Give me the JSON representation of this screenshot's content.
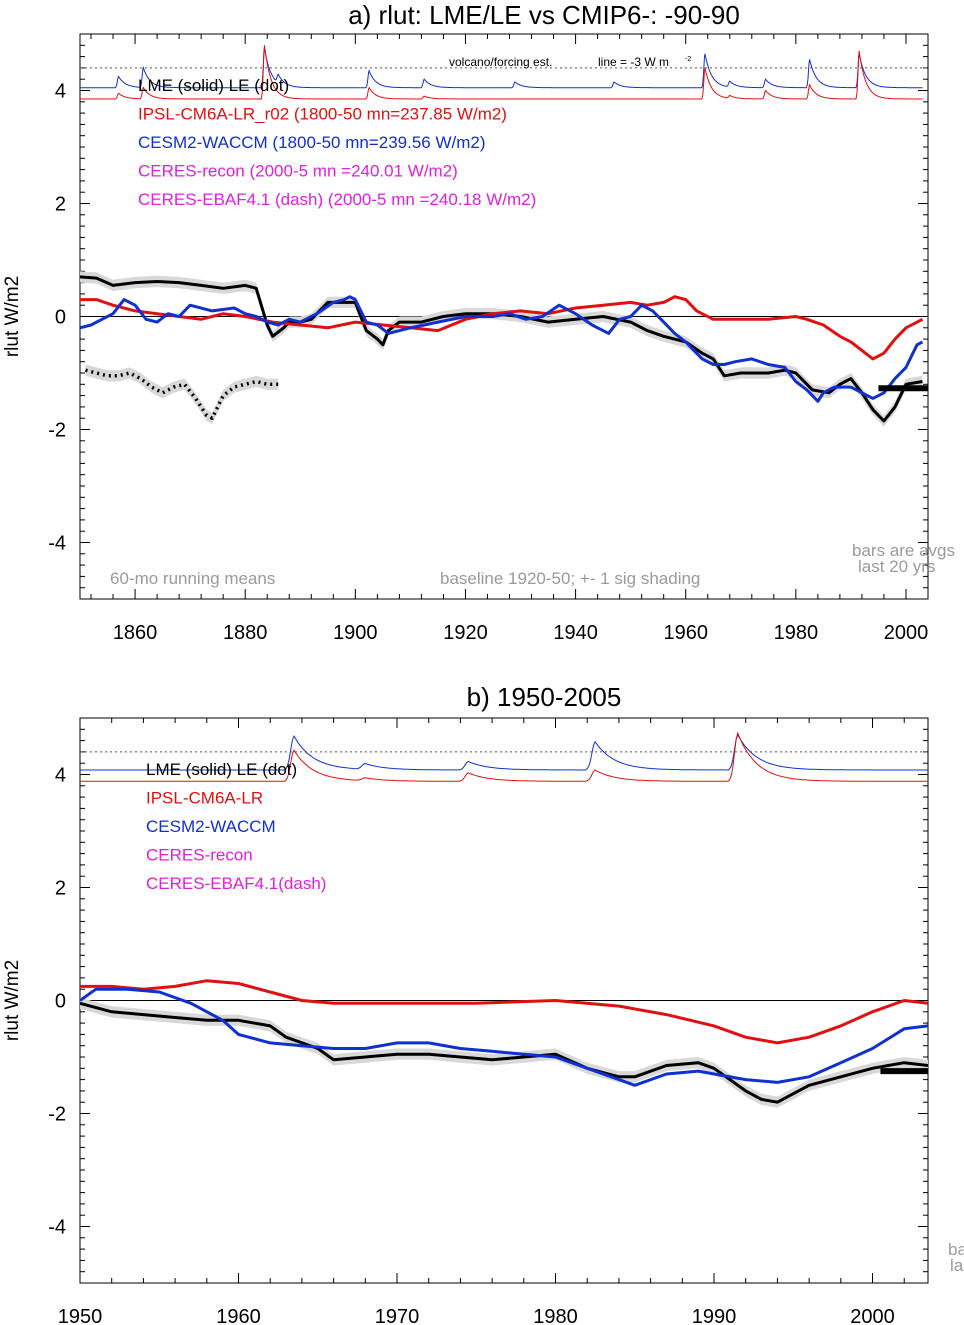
{
  "colors": {
    "lme": "#000000",
    "ipsl": "#e01010",
    "cesm": "#1030d0",
    "ceres": "#e020e0",
    "note": "#9a9a9a",
    "shade": "#d8d8d8",
    "volcano_red": "#e01010",
    "volcano_blue": "#1030d0"
  },
  "chart_data": [
    {
      "type": "line",
      "title": "a) rlut: LME/LE vs CMIP6-: -90-90",
      "ylabel": "rlut W/m2",
      "xlabel": "",
      "xlim": [
        1850,
        2004
      ],
      "ylim": [
        -5,
        5
      ],
      "xticks": [
        1860,
        1880,
        1900,
        1920,
        1940,
        1960,
        1980,
        2000
      ],
      "yticks": [
        4,
        2,
        0,
        -2,
        -4
      ],
      "ytick_labels": [
        "4",
        "2",
        "0",
        "-2",
        "-4"
      ],
      "zero_line": true,
      "legend": [
        {
          "text": "LME (solid)   LE (dot)",
          "color": "#000000"
        },
        {
          "text": "IPSL-CM6A-LR_r02 (1800-50 mn=237.85 W/m2)",
          "color": "#e01010"
        },
        {
          "text": "CESM2-WACCM (1800-50 mn=239.56 W/m2)",
          "color": "#1030d0"
        },
        {
          "text": "CERES-recon (2000-5 mn =240.01 W/m2)",
          "color": "#e020e0"
        },
        {
          "text": "CERES-EBAF4.1 (dash) (2000-5 mn =240.18 W/m2)",
          "color": "#e020e0"
        }
      ],
      "annotations": {
        "volcano": "volcano/forcing est.",
        "line_note": "line = -3 W m",
        "line_note_sup": "-2",
        "running": "60-mo running means",
        "baseline": "baseline 1920-50; +- 1 sig shading",
        "bars1": "bars are avgs",
        "bars2": "last 20 yrs"
      },
      "volcano_reference": 4.4,
      "bar": {
        "x": [
          1995,
          2004
        ],
        "y": -1.27
      },
      "series": [
        {
          "name": "LME (solid)",
          "style": "solid",
          "color": "#000000",
          "shading": 0.1,
          "x": [
            1850,
            1853,
            1856,
            1860,
            1864,
            1868,
            1872,
            1876,
            1880,
            1882,
            1884,
            1885,
            1887,
            1888,
            1890,
            1892,
            1895,
            1898,
            1900,
            1902,
            1904,
            1905,
            1906,
            1908,
            1912,
            1916,
            1920,
            1925,
            1930,
            1935,
            1940,
            1945,
            1950,
            1953,
            1956,
            1960,
            1963,
            1965,
            1967,
            1970,
            1975,
            1978,
            1980,
            1983,
            1986,
            1988,
            1990,
            1992,
            1994,
            1996,
            1998,
            2000,
            2003
          ],
          "y": [
            0.7,
            0.68,
            0.55,
            0.6,
            0.62,
            0.6,
            0.55,
            0.5,
            0.55,
            0.5,
            -0.15,
            -0.35,
            -0.2,
            -0.1,
            -0.1,
            -0.05,
            0.25,
            0.25,
            0.25,
            -0.25,
            -0.4,
            -0.5,
            -0.25,
            -0.1,
            -0.1,
            0.0,
            0.05,
            0.05,
            0.0,
            -0.1,
            -0.05,
            0.0,
            -0.1,
            -0.25,
            -0.35,
            -0.45,
            -0.65,
            -0.75,
            -1.05,
            -1.0,
            -1.0,
            -0.95,
            -1.0,
            -1.3,
            -1.35,
            -1.2,
            -1.1,
            -1.35,
            -1.65,
            -1.85,
            -1.6,
            -1.2,
            -1.15
          ]
        },
        {
          "name": "LE (dot)",
          "style": "dot",
          "color": "#000000",
          "shading": 0.1,
          "x": [
            1851,
            1853,
            1855,
            1857,
            1859,
            1861,
            1863,
            1865,
            1867,
            1869,
            1871,
            1873,
            1874,
            1876,
            1878,
            1880,
            1882,
            1884,
            1886
          ],
          "y": [
            -0.95,
            -1.0,
            -1.05,
            -1.05,
            -1.0,
            -1.1,
            -1.25,
            -1.35,
            -1.25,
            -1.2,
            -1.45,
            -1.75,
            -1.8,
            -1.4,
            -1.25,
            -1.2,
            -1.15,
            -1.2,
            -1.2
          ]
        },
        {
          "name": "IPSL-CM6A-LR_r02",
          "style": "solid",
          "color": "#e01010",
          "x": [
            1850,
            1853,
            1856,
            1860,
            1864,
            1868,
            1872,
            1876,
            1880,
            1885,
            1890,
            1895,
            1900,
            1905,
            1910,
            1915,
            1920,
            1925,
            1930,
            1935,
            1940,
            1945,
            1950,
            1953,
            1956,
            1958,
            1960,
            1962,
            1965,
            1970,
            1975,
            1980,
            1982,
            1985,
            1988,
            1990,
            1992,
            1994,
            1996,
            1998,
            2000,
            2003
          ],
          "y": [
            0.3,
            0.3,
            0.2,
            0.1,
            0.05,
            0.0,
            -0.05,
            0.05,
            0.0,
            -0.1,
            -0.15,
            -0.2,
            -0.1,
            -0.15,
            -0.2,
            -0.25,
            -0.05,
            0.05,
            0.1,
            0.05,
            0.15,
            0.2,
            0.25,
            0.2,
            0.25,
            0.35,
            0.3,
            0.1,
            -0.05,
            -0.05,
            -0.05,
            0.0,
            -0.05,
            -0.15,
            -0.35,
            -0.45,
            -0.6,
            -0.75,
            -0.65,
            -0.4,
            -0.2,
            -0.05
          ]
        },
        {
          "name": "CESM2-WACCM",
          "style": "solid",
          "color": "#1030d0",
          "x": [
            1850,
            1852,
            1854,
            1856,
            1858,
            1860,
            1862,
            1864,
            1866,
            1868,
            1870,
            1874,
            1878,
            1880,
            1882,
            1884,
            1886,
            1888,
            1890,
            1893,
            1896,
            1898,
            1899,
            1900,
            1902,
            1904,
            1906,
            1910,
            1915,
            1920,
            1925,
            1928,
            1931,
            1934,
            1937,
            1940,
            1943,
            1946,
            1948,
            1950,
            1952,
            1954,
            1956,
            1958,
            1960,
            1963,
            1965,
            1967,
            1969,
            1972,
            1975,
            1978,
            1980,
            1982,
            1984,
            1985,
            1987,
            1990,
            1992,
            1994,
            1996,
            1998,
            2000,
            2002,
            2003
          ],
          "y": [
            -0.2,
            -0.15,
            -0.05,
            0.05,
            0.3,
            0.2,
            -0.05,
            -0.1,
            0.05,
            0.0,
            0.2,
            0.1,
            0.15,
            0.05,
            0.0,
            -0.1,
            -0.15,
            -0.05,
            -0.1,
            0.05,
            0.25,
            0.3,
            0.35,
            0.3,
            -0.1,
            -0.15,
            -0.3,
            -0.2,
            -0.1,
            0.0,
            0.0,
            0.05,
            -0.05,
            0.0,
            0.2,
            0.05,
            -0.15,
            -0.3,
            -0.05,
            0.0,
            0.2,
            0.1,
            -0.1,
            -0.3,
            -0.45,
            -0.75,
            -0.85,
            -0.85,
            -0.8,
            -0.75,
            -0.85,
            -0.9,
            -1.15,
            -1.3,
            -1.5,
            -1.35,
            -1.25,
            -1.25,
            -1.35,
            -1.45,
            -1.35,
            -1.1,
            -0.9,
            -0.5,
            -0.45
          ]
        }
      ],
      "volcano_series": [
        {
          "color": "#1030d0",
          "base": 4.05,
          "x": [
            1850,
            2003
          ],
          "peaks": [
            [
              1857,
              0.2
            ],
            [
              1861.5,
              0.35
            ],
            [
              1883.5,
              0.7
            ],
            [
              1886,
              0.15
            ],
            [
              1902.5,
              0.3
            ],
            [
              1912.5,
              0.15
            ],
            [
              1929,
              0.1
            ],
            [
              1947,
              0.1
            ],
            [
              1963.5,
              0.6
            ],
            [
              1968,
              0.1
            ],
            [
              1974.5,
              0.15
            ],
            [
              1982.5,
              0.5
            ],
            [
              1991.5,
              0.6
            ]
          ]
        },
        {
          "color": "#e01010",
          "base": 3.85,
          "x": [
            1850,
            2003
          ],
          "peaks": [
            [
              1857,
              0.1
            ],
            [
              1861.5,
              0.2
            ],
            [
              1883.5,
              0.95
            ],
            [
              1902.5,
              0.2
            ],
            [
              1912.5,
              0.05
            ],
            [
              1963.5,
              0.55
            ],
            [
              1968,
              0.05
            ],
            [
              1974.5,
              0.15
            ],
            [
              1982.5,
              0.25
            ],
            [
              1991.5,
              0.85
            ]
          ]
        }
      ]
    },
    {
      "type": "line",
      "title": "b) 1950-2005",
      "ylabel": "rlut W/m2",
      "xlabel": "",
      "xlim": [
        1950,
        2003.5
      ],
      "ylim": [
        -5,
        5
      ],
      "xticks": [
        1950,
        1960,
        1970,
        1980,
        1990,
        2000
      ],
      "yticks": [
        4,
        2,
        0,
        -2,
        -4
      ],
      "ytick_labels": [
        "4",
        "2",
        "0",
        "-2",
        "-4"
      ],
      "zero_line": true,
      "legend": [
        {
          "text": "LME (solid)      LE (dot)",
          "color": "#000000"
        },
        {
          "text": "IPSL-CM6A-LR",
          "color": "#e01010"
        },
        {
          "text": "CESM2-WACCM",
          "color": "#1030d0"
        },
        {
          "text": "CERES-recon",
          "color": "#e020e0"
        },
        {
          "text": "CERES-EBAF4.1(dash)",
          "color": "#e020e0"
        }
      ],
      "annotations": {
        "bars1": "ba",
        "bars2": "la"
      },
      "volcano_reference": 4.4,
      "bar": {
        "x": [
          2000.5,
          2003.5
        ],
        "y": -1.25
      },
      "series": [
        {
          "name": "LME (solid)",
          "style": "solid",
          "color": "#000000",
          "shading": 0.1,
          "x": [
            1950,
            1952,
            1954,
            1956,
            1958,
            1960,
            1962,
            1963,
            1965,
            1966,
            1968,
            1970,
            1972,
            1974,
            1976,
            1978,
            1980,
            1982,
            1984,
            1985,
            1987,
            1989,
            1990,
            1992,
            1993,
            1994,
            1995,
            1996,
            1998,
            2000,
            2002,
            2003.5
          ],
          "y": [
            -0.05,
            -0.2,
            -0.25,
            -0.3,
            -0.35,
            -0.35,
            -0.45,
            -0.65,
            -0.85,
            -1.05,
            -1.0,
            -0.95,
            -0.95,
            -1.0,
            -1.05,
            -1.0,
            -0.95,
            -1.2,
            -1.35,
            -1.35,
            -1.15,
            -1.1,
            -1.2,
            -1.6,
            -1.75,
            -1.8,
            -1.65,
            -1.5,
            -1.35,
            -1.2,
            -1.1,
            -1.15
          ]
        },
        {
          "name": "IPSL-CM6A-LR",
          "style": "solid",
          "color": "#e01010",
          "x": [
            1950,
            1952,
            1954,
            1956,
            1958,
            1960,
            1962,
            1964,
            1966,
            1970,
            1975,
            1980,
            1984,
            1987,
            1990,
            1992,
            1994,
            1996,
            1998,
            2000,
            2002,
            2003.5
          ],
          "y": [
            0.25,
            0.25,
            0.2,
            0.25,
            0.35,
            0.3,
            0.15,
            0.0,
            -0.05,
            -0.05,
            -0.05,
            0.0,
            -0.1,
            -0.25,
            -0.45,
            -0.65,
            -0.75,
            -0.65,
            -0.45,
            -0.2,
            0.0,
            -0.05
          ]
        },
        {
          "name": "CESM2-WACCM",
          "style": "solid",
          "color": "#1030d0",
          "x": [
            1950,
            1951,
            1953,
            1955,
            1957,
            1959,
            1960,
            1962,
            1964,
            1966,
            1968,
            1970,
            1972,
            1974,
            1976,
            1978,
            1980,
            1982,
            1984,
            1985,
            1987,
            1989,
            1990,
            1992,
            1994,
            1996,
            1998,
            2000,
            2002,
            2003.5
          ],
          "y": [
            0.0,
            0.2,
            0.2,
            0.15,
            -0.05,
            -0.35,
            -0.6,
            -0.75,
            -0.8,
            -0.85,
            -0.85,
            -0.75,
            -0.75,
            -0.85,
            -0.9,
            -0.95,
            -1.0,
            -1.2,
            -1.4,
            -1.5,
            -1.3,
            -1.25,
            -1.3,
            -1.4,
            -1.45,
            -1.35,
            -1.1,
            -0.85,
            -0.5,
            -0.45
          ]
        }
      ],
      "volcano_series": [
        {
          "color": "#1030d0",
          "base": 4.08,
          "x": [
            1950,
            2003.5
          ],
          "peaks": [
            [
              1963.5,
              0.6
            ],
            [
              1968,
              0.1
            ],
            [
              1974.5,
              0.15
            ],
            [
              1982.5,
              0.5
            ],
            [
              1991.5,
              0.62
            ]
          ]
        },
        {
          "color": "#e01010",
          "base": 3.88,
          "x": [
            1950,
            2003.5
          ],
          "peaks": [
            [
              1963.5,
              0.55
            ],
            [
              1968,
              0.05
            ],
            [
              1974.5,
              0.15
            ],
            [
              1982.5,
              0.2
            ],
            [
              1991.5,
              0.85
            ]
          ]
        }
      ]
    }
  ]
}
